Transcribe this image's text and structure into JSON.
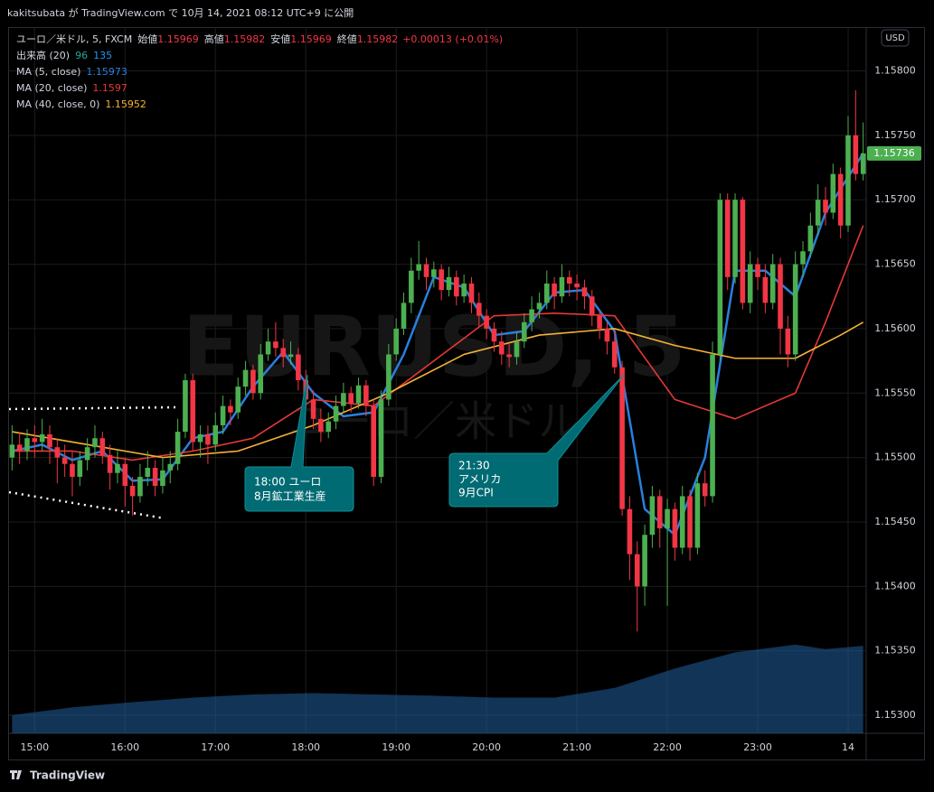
{
  "header": {
    "text": "kakitsubata が TradingView.com で 10月 14, 2021 08:12 UTC+9 に公開"
  },
  "footer": {
    "brand": "TradingView"
  },
  "currency_button": "USD",
  "watermark": {
    "title": "EURUSD, 5",
    "subtitle": "ユーロ／米ドル"
  },
  "legend": {
    "symbol": "ユーロ／米ドル, 5, FXCM",
    "ohlc": [
      {
        "label": "始値",
        "value": 1.15969
      },
      {
        "label": "高値",
        "value": 1.15982
      },
      {
        "label": "安値",
        "value": 1.15969
      },
      {
        "label": "終値",
        "value": 1.15982
      }
    ],
    "change": "+0.00013 (+0.01%)",
    "volume": {
      "label": "出来高 (20)",
      "value": 96,
      "ma": 135
    }
  },
  "annotations": [
    {
      "lines": [
        "18:00 ユーロ",
        "8月鉱工業生産"
      ]
    },
    {
      "lines": [
        "21:30",
        "アメリカ",
        "9月CPI"
      ]
    }
  ],
  "chart_data": {
    "type": "candlestick",
    "up_color": "#4caf50",
    "down_color": "#f23645",
    "xlim": [
      -0.4,
      113.4
    ],
    "ylim": [
      1.15286,
      1.15834
    ],
    "grid": true,
    "xticks": [
      {
        "value": 3,
        "label": "15:00"
      },
      {
        "value": 15,
        "label": "16:00"
      },
      {
        "value": 27,
        "label": "17:00"
      },
      {
        "value": 39,
        "label": "18:00"
      },
      {
        "value": 51,
        "label": "19:00"
      },
      {
        "value": 63,
        "label": "20:00"
      },
      {
        "value": 75,
        "label": "21:00"
      },
      {
        "value": 87,
        "label": "22:00"
      },
      {
        "value": 99,
        "label": "23:00"
      },
      {
        "value": 111,
        "label": "14"
      }
    ],
    "yticks": [
      {
        "value": 1.153,
        "label": "1.15300"
      },
      {
        "value": 1.1535,
        "label": "1.15350"
      },
      {
        "value": 1.154,
        "label": "1.15400"
      },
      {
        "value": 1.1545,
        "label": "1.15450"
      },
      {
        "value": 1.155,
        "label": "1.15500"
      },
      {
        "value": 1.1555,
        "label": "1.15550"
      },
      {
        "value": 1.156,
        "label": "1.15600"
      },
      {
        "value": 1.1565,
        "label": "1.15650"
      },
      {
        "value": 1.157,
        "label": "1.15700"
      },
      {
        "value": 1.1575,
        "label": "1.15750"
      },
      {
        "value": 1.158,
        "label": "1.15800"
      }
    ],
    "last_price": 1.15736,
    "last_price_color": "#4caf50",
    "candles": [
      [
        1.155,
        1.15525,
        1.1549,
        1.1551
      ],
      [
        1.1551,
        1.1552,
        1.15495,
        1.15505
      ],
      [
        1.15505,
        1.15522,
        1.15498,
        1.15515
      ],
      [
        1.15515,
        1.15525,
        1.155,
        1.15512
      ],
      [
        1.15512,
        1.1553,
        1.15505,
        1.15518
      ],
      [
        1.15518,
        1.15525,
        1.15495,
        1.15508
      ],
      [
        1.15508,
        1.15515,
        1.1548,
        1.155
      ],
      [
        1.155,
        1.1551,
        1.15485,
        1.15495
      ],
      [
        1.15495,
        1.15505,
        1.1547,
        1.15485
      ],
      [
        1.15485,
        1.15505,
        1.15478,
        1.15498
      ],
      [
        1.15498,
        1.15515,
        1.1549,
        1.15508
      ],
      [
        1.15508,
        1.15525,
        1.155,
        1.15515
      ],
      [
        1.15515,
        1.1552,
        1.15495,
        1.15502
      ],
      [
        1.15502,
        1.1551,
        1.15475,
        1.15488
      ],
      [
        1.15488,
        1.15505,
        1.1548,
        1.15495
      ],
      [
        1.15495,
        1.155,
        1.15462,
        1.15478
      ],
      [
        1.15478,
        1.15485,
        1.15455,
        1.1547
      ],
      [
        1.1547,
        1.15495,
        1.15465,
        1.15485
      ],
      [
        1.15485,
        1.15505,
        1.15478,
        1.15492
      ],
      [
        1.15492,
        1.15498,
        1.1547,
        1.15478
      ],
      [
        1.15478,
        1.155,
        1.15472,
        1.1549
      ],
      [
        1.1549,
        1.15505,
        1.1548,
        1.15495
      ],
      [
        1.15495,
        1.1553,
        1.1549,
        1.1552
      ],
      [
        1.1552,
        1.15565,
        1.15515,
        1.1556
      ],
      [
        1.1556,
        1.15565,
        1.15505,
        1.15512
      ],
      [
        1.15512,
        1.15525,
        1.155,
        1.15518
      ],
      [
        1.15518,
        1.15525,
        1.15495,
        1.1551
      ],
      [
        1.1551,
        1.15535,
        1.15505,
        1.15525
      ],
      [
        1.15525,
        1.15548,
        1.15518,
        1.1554
      ],
      [
        1.1554,
        1.15545,
        1.15525,
        1.15535
      ],
      [
        1.15535,
        1.15562,
        1.1553,
        1.15555
      ],
      [
        1.15555,
        1.15575,
        1.15548,
        1.15568
      ],
      [
        1.15568,
        1.15572,
        1.15545,
        1.1555
      ],
      [
        1.1555,
        1.15588,
        1.15545,
        1.1558
      ],
      [
        1.1558,
        1.156,
        1.15575,
        1.1559
      ],
      [
        1.1559,
        1.15605,
        1.15578,
        1.15585
      ],
      [
        1.15585,
        1.15592,
        1.1557,
        1.15578
      ],
      [
        1.15578,
        1.1559,
        1.15572,
        1.1558
      ],
      [
        1.1558,
        1.15585,
        1.15552,
        1.1556
      ],
      [
        1.1556,
        1.15568,
        1.15538,
        1.15545
      ],
      [
        1.15545,
        1.15552,
        1.15522,
        1.1553
      ],
      [
        1.1553,
        1.15538,
        1.15512,
        1.1552
      ],
      [
        1.1552,
        1.15535,
        1.15515,
        1.15528
      ],
      [
        1.15528,
        1.15548,
        1.15522,
        1.1554
      ],
      [
        1.1554,
        1.15558,
        1.15535,
        1.1555
      ],
      [
        1.1555,
        1.15555,
        1.15535,
        1.15542
      ],
      [
        1.15542,
        1.15562,
        1.15538,
        1.15556
      ],
      [
        1.15556,
        1.1556,
        1.15532,
        1.1554
      ],
      [
        1.1554,
        1.15545,
        1.15478,
        1.15485
      ],
      [
        1.15485,
        1.15552,
        1.1548,
        1.15545
      ],
      [
        1.15545,
        1.15588,
        1.1554,
        1.1558
      ],
      [
        1.1558,
        1.15608,
        1.15575,
        1.156
      ],
      [
        1.156,
        1.15628,
        1.15595,
        1.1562
      ],
      [
        1.1562,
        1.15655,
        1.15612,
        1.15645
      ],
      [
        1.15645,
        1.15668,
        1.15638,
        1.1565
      ],
      [
        1.1565,
        1.15655,
        1.1563,
        1.1564
      ],
      [
        1.1564,
        1.15652,
        1.15632,
        1.15646
      ],
      [
        1.15646,
        1.1565,
        1.15622,
        1.1563
      ],
      [
        1.1563,
        1.15648,
        1.15625,
        1.1564
      ],
      [
        1.1564,
        1.15645,
        1.15618,
        1.15625
      ],
      [
        1.15625,
        1.15642,
        1.1562,
        1.15635
      ],
      [
        1.15635,
        1.1564,
        1.15612,
        1.1562
      ],
      [
        1.1562,
        1.15628,
        1.15602,
        1.1561
      ],
      [
        1.1561,
        1.15615,
        1.15592,
        1.156
      ],
      [
        1.156,
        1.15605,
        1.15582,
        1.1559
      ],
      [
        1.1559,
        1.15598,
        1.15572,
        1.1558
      ],
      [
        1.1558,
        1.15588,
        1.1557,
        1.15578
      ],
      [
        1.15578,
        1.15598,
        1.15572,
        1.1559
      ],
      [
        1.1559,
        1.15612,
        1.15585,
        1.15605
      ],
      [
        1.15605,
        1.15625,
        1.15598,
        1.15615
      ],
      [
        1.15615,
        1.15628,
        1.15608,
        1.1562
      ],
      [
        1.1562,
        1.15645,
        1.15615,
        1.15635
      ],
      [
        1.15635,
        1.1564,
        1.15615,
        1.15625
      ],
      [
        1.15625,
        1.1565,
        1.1562,
        1.1564
      ],
      [
        1.1564,
        1.15645,
        1.15625,
        1.15635
      ],
      [
        1.15635,
        1.15642,
        1.15622,
        1.15632
      ],
      [
        1.15632,
        1.15638,
        1.15615,
        1.15625
      ],
      [
        1.15625,
        1.1563,
        1.15602,
        1.1561
      ],
      [
        1.1561,
        1.15615,
        1.15592,
        1.156
      ],
      [
        1.156,
        1.15605,
        1.1558,
        1.1559
      ],
      [
        1.1559,
        1.15598,
        1.15565,
        1.1557
      ],
      [
        1.1557,
        1.15575,
        1.15455,
        1.1546
      ],
      [
        1.1546,
        1.1547,
        1.15405,
        1.15425
      ],
      [
        1.15425,
        1.15435,
        1.15365,
        1.154
      ],
      [
        1.154,
        1.15448,
        1.15385,
        1.1544
      ],
      [
        1.1544,
        1.15478,
        1.1543,
        1.1547
      ],
      [
        1.1547,
        1.15475,
        1.1543,
        1.15445
      ],
      [
        1.15445,
        1.15468,
        1.15385,
        1.1546
      ],
      [
        1.1546,
        1.15465,
        1.1542,
        1.1543
      ],
      [
        1.1543,
        1.15478,
        1.15425,
        1.1547
      ],
      [
        1.1547,
        1.15475,
        1.1542,
        1.1543
      ],
      [
        1.1543,
        1.15488,
        1.15425,
        1.1548
      ],
      [
        1.1548,
        1.1549,
        1.15462,
        1.1547
      ],
      [
        1.1547,
        1.1559,
        1.15465,
        1.1558
      ],
      [
        1.1558,
        1.15705,
        1.15575,
        1.157
      ],
      [
        1.157,
        1.15705,
        1.1563,
        1.1564
      ],
      [
        1.1564,
        1.15705,
        1.15635,
        1.157
      ],
      [
        1.157,
        1.15702,
        1.15615,
        1.1562
      ],
      [
        1.1562,
        1.1566,
        1.15612,
        1.1565
      ],
      [
        1.1565,
        1.15655,
        1.1563,
        1.1564
      ],
      [
        1.1564,
        1.1565,
        1.15612,
        1.1562
      ],
      [
        1.1562,
        1.15658,
        1.15615,
        1.1565
      ],
      [
        1.1565,
        1.15655,
        1.1558,
        1.156
      ],
      [
        1.156,
        1.1561,
        1.1557,
        1.1558
      ],
      [
        1.1558,
        1.1566,
        1.15575,
        1.1565
      ],
      [
        1.1565,
        1.15668,
        1.1564,
        1.1566
      ],
      [
        1.1566,
        1.1569,
        1.15655,
        1.1568
      ],
      [
        1.1568,
        1.15712,
        1.15672,
        1.157
      ],
      [
        1.157,
        1.1571,
        1.1568,
        1.1569
      ],
      [
        1.1569,
        1.15728,
        1.15685,
        1.1572
      ],
      [
        1.1572,
        1.15725,
        1.1567,
        1.1568
      ],
      [
        1.1568,
        1.15765,
        1.15675,
        1.1575
      ],
      [
        1.1575,
        1.15785,
        1.15715,
        1.1572
      ],
      [
        1.1572,
        1.1576,
        1.15715,
        1.15736
      ]
    ],
    "series": [
      {
        "name": "MA (5, close)",
        "legend_value": 1.15973,
        "color": "#2a7fde",
        "x": [
          0,
          4,
          8,
          12,
          16,
          20,
          24,
          28,
          32,
          36,
          40,
          44,
          48,
          52,
          56,
          60,
          64,
          68,
          72,
          76,
          80,
          84,
          88,
          92,
          96,
          100,
          104,
          108,
          113
        ],
        "values": [
          1.15505,
          1.1551,
          1.15498,
          1.15505,
          1.15482,
          1.15483,
          1.15515,
          1.1552,
          1.15555,
          1.15582,
          1.1555,
          1.15532,
          1.15535,
          1.1558,
          1.1564,
          1.15632,
          1.15595,
          1.15598,
          1.15628,
          1.1563,
          1.15598,
          1.1546,
          1.1544,
          1.155,
          1.15645,
          1.15645,
          1.15625,
          1.1569,
          1.15736
        ]
      },
      {
        "name": "MA (20, close)",
        "legend_value": 1.1597,
        "color": "#e53935",
        "x": [
          0,
          8,
          16,
          24,
          32,
          40,
          48,
          56,
          64,
          72,
          80,
          88,
          96,
          104,
          108,
          113
        ],
        "values": [
          1.15505,
          1.15505,
          1.15498,
          1.15505,
          1.15515,
          1.15545,
          1.1554,
          1.15575,
          1.1561,
          1.15612,
          1.1561,
          1.15545,
          1.1553,
          1.1555,
          1.15605,
          1.1568
        ]
      },
      {
        "name": "MA (40, close, 0)",
        "legend_value": 1.15952,
        "color": "#f5b335",
        "x": [
          0,
          10,
          20,
          30,
          40,
          50,
          60,
          70,
          80,
          88,
          96,
          104,
          110,
          113
        ],
        "values": [
          1.1552,
          1.1551,
          1.155,
          1.15505,
          1.15525,
          1.1555,
          1.1558,
          1.15595,
          1.156,
          1.15587,
          1.15577,
          1.15577,
          1.15595,
          1.15605
        ]
      }
    ],
    "volume_ma": {
      "color": "#1f5f9e",
      "vlim": [
        0,
        400
      ],
      "x": [
        0,
        8,
        16,
        24,
        32,
        40,
        48,
        56,
        64,
        72,
        80,
        88,
        96,
        104,
        108,
        113
      ],
      "values": [
        28,
        40,
        48,
        55,
        60,
        62,
        60,
        58,
        55,
        55,
        70,
        100,
        125,
        137,
        130,
        135
      ]
    }
  }
}
